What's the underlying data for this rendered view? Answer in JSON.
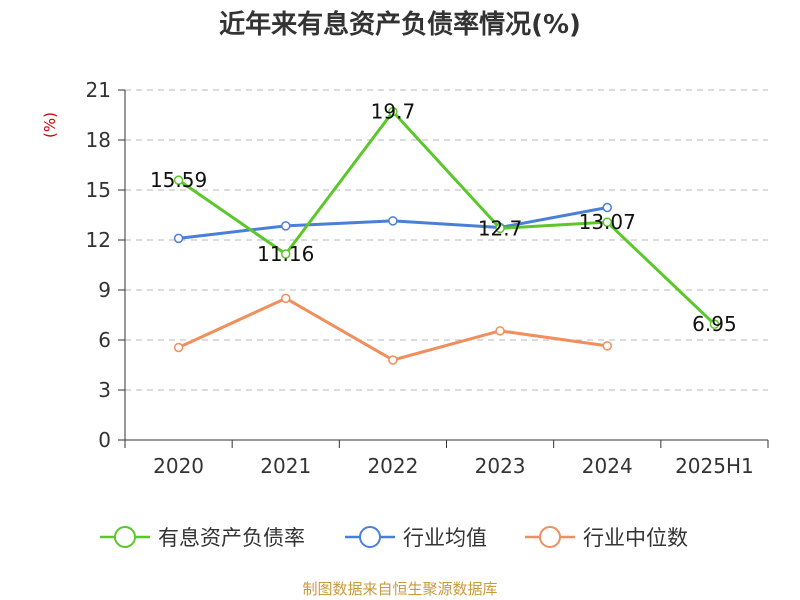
{
  "chart_data": {
    "type": "line",
    "title": "近年来有息资产负债率情况(%)",
    "ylabel": "(%)",
    "categories": [
      "2020",
      "2021",
      "2022",
      "2023",
      "2024",
      "2025H1"
    ],
    "ylim": [
      0,
      21
    ],
    "yticks": [
      0,
      3,
      6,
      9,
      12,
      15,
      18,
      21
    ],
    "grid": true,
    "legend_position": "bottom",
    "series": [
      {
        "name": "有息资产负债率",
        "color": "#5cc72b",
        "values": [
          15.59,
          11.16,
          19.7,
          12.7,
          13.07,
          6.95
        ],
        "labels": [
          "15.59",
          "11.16",
          "19.7",
          "12.7",
          "13.07",
          "6.95"
        ]
      },
      {
        "name": "行业均值",
        "color": "#4a7fd8",
        "values": [
          12.1,
          12.85,
          13.15,
          12.75,
          13.95,
          null
        ]
      },
      {
        "name": "行业中位数",
        "color": "#f28e5c",
        "values": [
          5.55,
          8.5,
          4.8,
          6.55,
          5.65,
          null
        ]
      }
    ]
  },
  "source": "制图数据来自恒生聚源数据库"
}
